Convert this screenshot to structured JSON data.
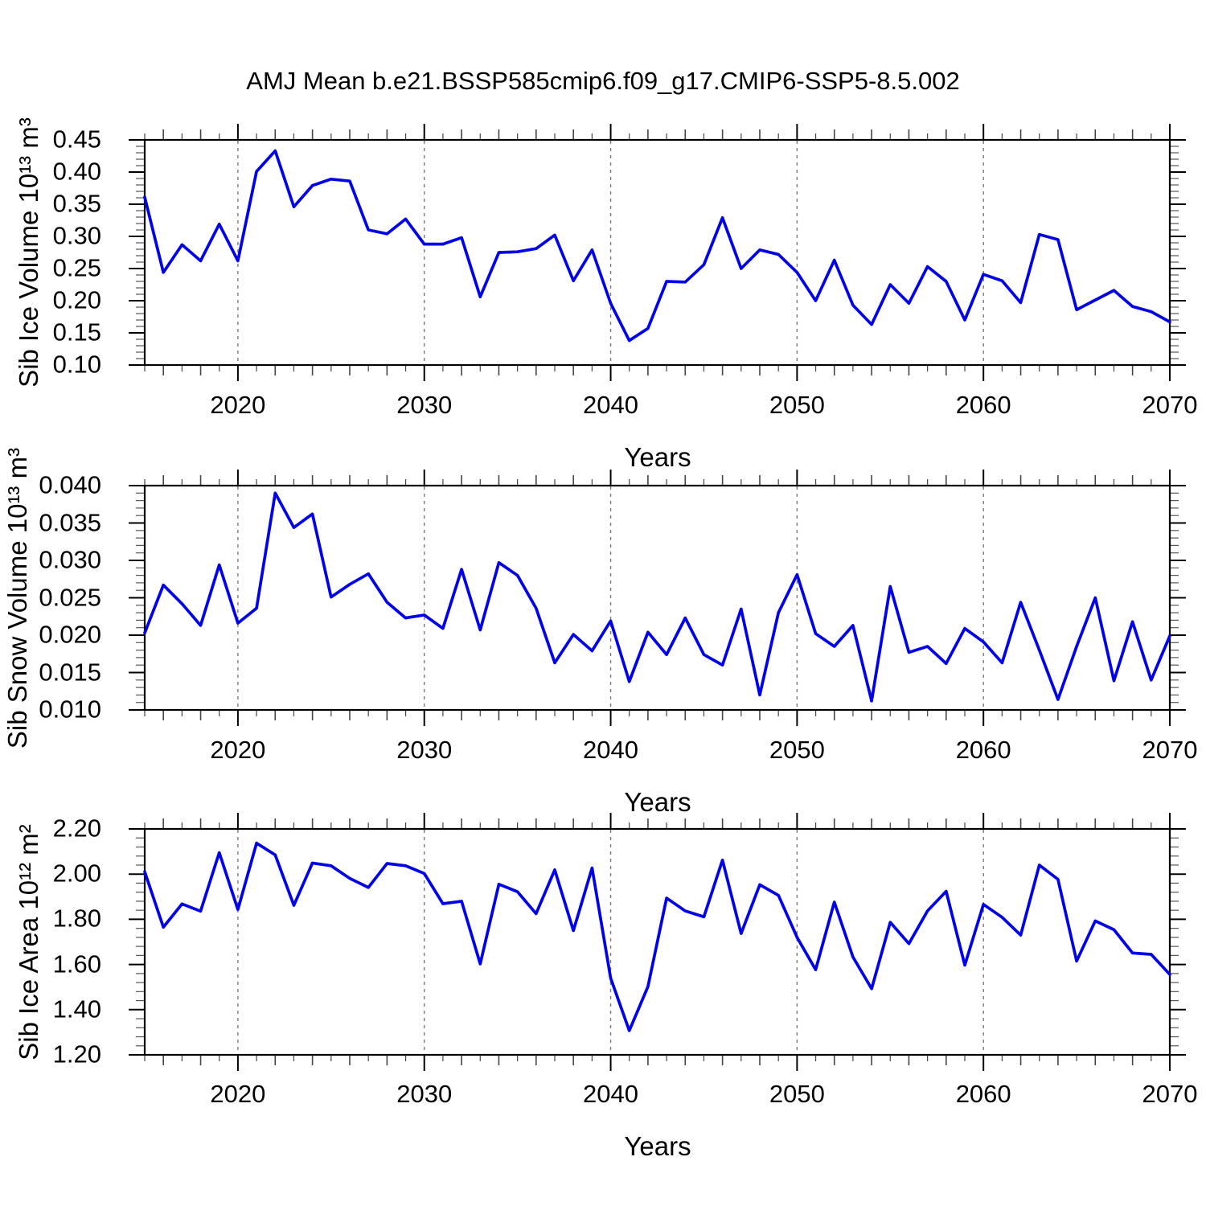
{
  "title": "AMJ Mean b.e21.BSSP585cmip6.f09_g17.CMIP6-SSP5-8.5.002",
  "colors": {
    "line": "#0000EE",
    "grid": "#7a7a7a",
    "axis": "#000000",
    "background": "#ffffff"
  },
  "chart_data": {
    "type": "line",
    "x_label": "Years",
    "x_range": [
      2015,
      2070
    ],
    "x_tick_labels": [
      "2020",
      "2030",
      "2040",
      "2050",
      "2060",
      "2070"
    ],
    "x_major_ticks": [
      2020,
      2030,
      2040,
      2050,
      2060,
      2070
    ],
    "x_gridlines": [
      2020,
      2030,
      2040,
      2050,
      2060
    ],
    "grid_style": "dashed-vertical",
    "legend": "none",
    "years": [
      2015,
      2016,
      2017,
      2018,
      2019,
      2020,
      2021,
      2022,
      2023,
      2024,
      2025,
      2026,
      2027,
      2028,
      2029,
      2030,
      2031,
      2032,
      2033,
      2034,
      2035,
      2036,
      2037,
      2038,
      2039,
      2040,
      2041,
      2042,
      2043,
      2044,
      2045,
      2046,
      2047,
      2048,
      2049,
      2050,
      2051,
      2052,
      2053,
      2054,
      2055,
      2056,
      2057,
      2058,
      2059,
      2060,
      2061,
      2062,
      2063,
      2064,
      2065,
      2066,
      2067,
      2068,
      2069,
      2070
    ],
    "panels": [
      {
        "name": "sib-ice-volume",
        "y_label": "Sib Ice Volume 10¹³ m³",
        "y_range": [
          0.1,
          0.45
        ],
        "y_major_ticks": [
          0.45,
          0.4,
          0.35,
          0.3,
          0.25,
          0.2,
          0.15,
          0.1
        ],
        "y_tick_labels": [
          "0.45",
          "0.40",
          "0.35",
          "0.30",
          "0.25",
          "0.20",
          "0.15",
          "0.10"
        ],
        "y_minor_step": 0.01,
        "values": [
          0.361,
          0.244,
          0.287,
          0.262,
          0.319,
          0.262,
          0.401,
          0.433,
          0.346,
          0.379,
          0.389,
          0.386,
          0.31,
          0.304,
          0.327,
          0.288,
          0.288,
          0.298,
          0.206,
          0.275,
          0.276,
          0.281,
          0.302,
          0.231,
          0.279,
          0.196,
          0.138,
          0.157,
          0.23,
          0.229,
          0.256,
          0.329,
          0.25,
          0.279,
          0.272,
          0.244,
          0.2,
          0.263,
          0.193,
          0.163,
          0.225,
          0.196,
          0.253,
          0.23,
          0.17,
          0.241,
          0.231,
          0.197,
          0.303,
          0.295,
          0.186,
          0.201,
          0.216,
          0.191,
          0.183,
          0.167
        ]
      },
      {
        "name": "sib-snow-volume",
        "y_label": "Sib Snow Volume 10¹³ m³",
        "y_range": [
          0.01,
          0.04
        ],
        "y_major_ticks": [
          0.04,
          0.035,
          0.03,
          0.025,
          0.02,
          0.015,
          0.01
        ],
        "y_tick_labels": [
          "0.040",
          "0.035",
          "0.030",
          "0.025",
          "0.020",
          "0.015",
          "0.010"
        ],
        "y_minor_step": 0.001,
        "values": [
          0.0203,
          0.0267,
          0.0242,
          0.0213,
          0.0294,
          0.0216,
          0.0236,
          0.039,
          0.0344,
          0.0362,
          0.0251,
          0.0268,
          0.0282,
          0.0244,
          0.0223,
          0.0227,
          0.0209,
          0.0288,
          0.0207,
          0.0297,
          0.028,
          0.0236,
          0.0163,
          0.0201,
          0.0179,
          0.0219,
          0.0138,
          0.0204,
          0.0174,
          0.0223,
          0.0174,
          0.016,
          0.0235,
          0.012,
          0.023,
          0.0281,
          0.0202,
          0.0185,
          0.0213,
          0.0112,
          0.0265,
          0.0177,
          0.0185,
          0.0162,
          0.0209,
          0.0191,
          0.0163,
          0.0244,
          0.018,
          0.0114,
          0.0185,
          0.025,
          0.0139,
          0.0218,
          0.014,
          0.0199
        ]
      },
      {
        "name": "sib-ice-area",
        "y_label": "Sib Ice Area 10¹² m²",
        "y_range": [
          1.2,
          2.2
        ],
        "y_major_ticks": [
          2.2,
          2.0,
          1.8,
          1.6,
          1.4,
          1.2
        ],
        "y_tick_labels": [
          "2.20",
          "2.00",
          "1.80",
          "1.60",
          "1.40",
          "1.20"
        ],
        "y_minor_step": 0.04,
        "values": [
          2.01,
          1.765,
          1.868,
          1.836,
          2.095,
          1.843,
          2.137,
          2.085,
          1.862,
          2.049,
          2.037,
          1.981,
          1.941,
          2.047,
          2.037,
          2.003,
          1.869,
          1.88,
          1.603,
          1.955,
          1.922,
          1.825,
          2.019,
          1.75,
          2.027,
          1.54,
          1.307,
          1.502,
          1.894,
          1.837,
          1.811,
          2.062,
          1.737,
          1.953,
          1.906,
          1.72,
          1.577,
          1.876,
          1.633,
          1.493,
          1.787,
          1.692,
          1.837,
          1.924,
          1.597,
          1.866,
          1.809,
          1.73,
          2.04,
          1.977,
          1.615,
          1.793,
          1.754,
          1.651,
          1.645,
          1.556
        ]
      }
    ]
  }
}
